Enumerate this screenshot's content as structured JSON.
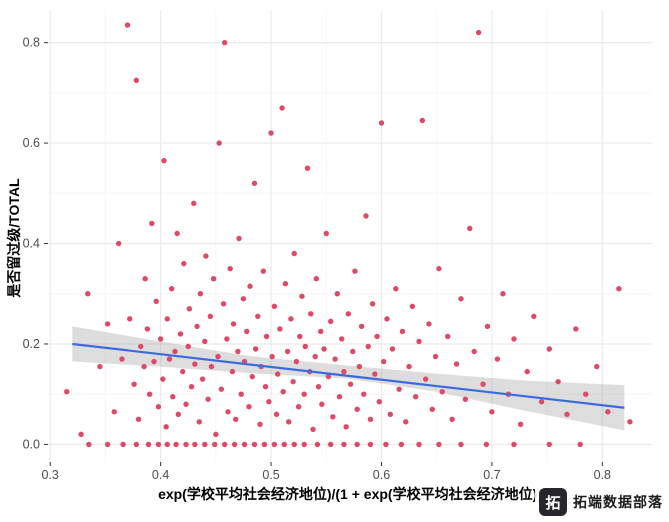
{
  "watermark": {
    "logo_glyph": "拓",
    "text": "拓端数据部落"
  },
  "chart_data": {
    "type": "scatter",
    "title": "",
    "xlabel": "exp(学校平均社会经济地位)/(1 + exp(学校平均社会经济地位))",
    "ylabel": "是否留过级/TOTAL",
    "xlim": [
      0.298,
      0.845
    ],
    "ylim": [
      -0.035,
      0.865
    ],
    "x_ticks": [
      0.3,
      0.4,
      0.5,
      0.6,
      0.7,
      0.8
    ],
    "y_ticks": [
      0.0,
      0.2,
      0.4,
      0.6,
      0.8
    ],
    "x_minor_ticks": [
      0.35,
      0.45,
      0.55,
      0.65,
      0.75
    ],
    "y_minor_ticks": [
      0.1,
      0.3,
      0.5,
      0.7
    ],
    "grid": true,
    "legend": "none",
    "colors": {
      "point": "#de4968",
      "smooth_line": "#3b6ae1",
      "band_fill": "#9e9e9e",
      "band_opacity": 0.35,
      "grid_major": "#ebebeb",
      "grid_minor": "#f6f6f6",
      "tick_text": "#4d4d4d",
      "tick_mark": "#333333"
    },
    "smooth": {
      "line": {
        "x": [
          0.32,
          0.82
        ],
        "y": [
          0.2,
          0.073
        ]
      },
      "band": {
        "x": [
          0.32,
          0.4,
          0.48,
          0.57,
          0.65,
          0.73,
          0.82
        ],
        "upper": [
          0.235,
          0.205,
          0.176,
          0.157,
          0.141,
          0.127,
          0.118
        ],
        "lower": [
          0.165,
          0.155,
          0.142,
          0.131,
          0.105,
          0.067,
          0.028
        ]
      }
    },
    "points": [
      [
        0.335,
        0
      ],
      [
        0.352,
        0
      ],
      [
        0.366,
        0
      ],
      [
        0.378,
        0
      ],
      [
        0.389,
        0
      ],
      [
        0.398,
        0
      ],
      [
        0.406,
        0
      ],
      [
        0.414,
        0
      ],
      [
        0.423,
        0
      ],
      [
        0.431,
        0
      ],
      [
        0.44,
        0
      ],
      [
        0.449,
        0
      ],
      [
        0.458,
        0
      ],
      [
        0.467,
        0
      ],
      [
        0.476,
        0
      ],
      [
        0.485,
        0
      ],
      [
        0.494,
        0
      ],
      [
        0.503,
        0
      ],
      [
        0.512,
        0
      ],
      [
        0.521,
        0
      ],
      [
        0.53,
        0
      ],
      [
        0.542,
        0
      ],
      [
        0.554,
        0
      ],
      [
        0.566,
        0
      ],
      [
        0.578,
        0
      ],
      [
        0.59,
        0
      ],
      [
        0.604,
        0
      ],
      [
        0.618,
        0
      ],
      [
        0.634,
        0
      ],
      [
        0.652,
        0
      ],
      [
        0.672,
        0
      ],
      [
        0.695,
        0
      ],
      [
        0.72,
        0
      ],
      [
        0.752,
        0
      ],
      [
        0.78,
        0
      ],
      [
        0.315,
        0.105
      ],
      [
        0.328,
        0.02
      ],
      [
        0.334,
        0.3
      ],
      [
        0.345,
        0.155
      ],
      [
        0.352,
        0.24
      ],
      [
        0.358,
        0.065
      ],
      [
        0.362,
        0.4
      ],
      [
        0.365,
        0.17
      ],
      [
        0.37,
        0.835
      ],
      [
        0.372,
        0.25
      ],
      [
        0.376,
        0.12
      ],
      [
        0.378,
        0.725
      ],
      [
        0.38,
        0.05
      ],
      [
        0.382,
        0.195
      ],
      [
        0.385,
        0.155
      ],
      [
        0.386,
        0.33
      ],
      [
        0.388,
        0.23
      ],
      [
        0.39,
        0.1
      ],
      [
        0.392,
        0.44
      ],
      [
        0.394,
        0.165
      ],
      [
        0.396,
        0.285
      ],
      [
        0.398,
        0.075
      ],
      [
        0.4,
        0.21
      ],
      [
        0.402,
        0.13
      ],
      [
        0.403,
        0.565
      ],
      [
        0.405,
        0.035
      ],
      [
        0.406,
        0.25
      ],
      [
        0.408,
        0.17
      ],
      [
        0.41,
        0.31
      ],
      [
        0.411,
        0.095
      ],
      [
        0.413,
        0.185
      ],
      [
        0.415,
        0.42
      ],
      [
        0.416,
        0.06
      ],
      [
        0.418,
        0.22
      ],
      [
        0.42,
        0.145
      ],
      [
        0.421,
        0.36
      ],
      [
        0.423,
        0.08
      ],
      [
        0.425,
        0.195
      ],
      [
        0.426,
        0.27
      ],
      [
        0.428,
        0.115
      ],
      [
        0.43,
        0.48
      ],
      [
        0.431,
        0.16
      ],
      [
        0.433,
        0.235
      ],
      [
        0.435,
        0.045
      ],
      [
        0.436,
        0.3
      ],
      [
        0.438,
        0.13
      ],
      [
        0.44,
        0.205
      ],
      [
        0.441,
        0.375
      ],
      [
        0.443,
        0.09
      ],
      [
        0.445,
        0.255
      ],
      [
        0.446,
        0.155
      ],
      [
        0.448,
        0.33
      ],
      [
        0.45,
        0.02
      ],
      [
        0.452,
        0.175
      ],
      [
        0.453,
        0.6
      ],
      [
        0.455,
        0.11
      ],
      [
        0.457,
        0.28
      ],
      [
        0.458,
        0.8
      ],
      [
        0.46,
        0.21
      ],
      [
        0.461,
        0.065
      ],
      [
        0.463,
        0.35
      ],
      [
        0.465,
        0.145
      ],
      [
        0.466,
        0.24
      ],
      [
        0.468,
        0.05
      ],
      [
        0.47,
        0.185
      ],
      [
        0.471,
        0.41
      ],
      [
        0.473,
        0.1
      ],
      [
        0.475,
        0.29
      ],
      [
        0.476,
        0.165
      ],
      [
        0.478,
        0.225
      ],
      [
        0.48,
        0.075
      ],
      [
        0.481,
        0.315
      ],
      [
        0.483,
        0.135
      ],
      [
        0.485,
        0.52
      ],
      [
        0.486,
        0.19
      ],
      [
        0.488,
        0.255
      ],
      [
        0.49,
        0.04
      ],
      [
        0.491,
        0.155
      ],
      [
        0.493,
        0.345
      ],
      [
        0.495,
        0.115
      ],
      [
        0.496,
        0.215
      ],
      [
        0.498,
        0.085
      ],
      [
        0.5,
        0.62
      ],
      [
        0.501,
        0.175
      ],
      [
        0.503,
        0.275
      ],
      [
        0.505,
        0.06
      ],
      [
        0.506,
        0.14
      ],
      [
        0.508,
        0.23
      ],
      [
        0.51,
        0.67
      ],
      [
        0.511,
        0.105
      ],
      [
        0.513,
        0.32
      ],
      [
        0.515,
        0.185
      ],
      [
        0.516,
        0.045
      ],
      [
        0.518,
        0.25
      ],
      [
        0.52,
        0.125
      ],
      [
        0.521,
        0.38
      ],
      [
        0.523,
        0.165
      ],
      [
        0.525,
        0.075
      ],
      [
        0.526,
        0.215
      ],
      [
        0.528,
        0.295
      ],
      [
        0.53,
        0.1
      ],
      [
        0.531,
        0.195
      ],
      [
        0.533,
        0.55
      ],
      [
        0.535,
        0.145
      ],
      [
        0.536,
        0.26
      ],
      [
        0.538,
        0.03
      ],
      [
        0.54,
        0.175
      ],
      [
        0.541,
        0.33
      ],
      [
        0.543,
        0.115
      ],
      [
        0.545,
        0.225
      ],
      [
        0.546,
        0.08
      ],
      [
        0.548,
        0.19
      ],
      [
        0.55,
        0.42
      ],
      [
        0.552,
        0.135
      ],
      [
        0.554,
        0.245
      ],
      [
        0.556,
        0.055
      ],
      [
        0.558,
        0.17
      ],
      [
        0.56,
        0.3
      ],
      [
        0.562,
        0.095
      ],
      [
        0.564,
        0.21
      ],
      [
        0.566,
        0.145
      ],
      [
        0.568,
        0.035
      ],
      [
        0.57,
        0.26
      ],
      [
        0.572,
        0.12
      ],
      [
        0.574,
        0.185
      ],
      [
        0.576,
        0.345
      ],
      [
        0.578,
        0.07
      ],
      [
        0.58,
        0.155
      ],
      [
        0.582,
        0.235
      ],
      [
        0.584,
        0.1
      ],
      [
        0.586,
        0.455
      ],
      [
        0.588,
        0.195
      ],
      [
        0.59,
        0.05
      ],
      [
        0.592,
        0.28
      ],
      [
        0.594,
        0.14
      ],
      [
        0.596,
        0.215
      ],
      [
        0.598,
        0.085
      ],
      [
        0.6,
        0.64
      ],
      [
        0.602,
        0.165
      ],
      [
        0.605,
        0.25
      ],
      [
        0.608,
        0.06
      ],
      [
        0.61,
        0.19
      ],
      [
        0.613,
        0.31
      ],
      [
        0.616,
        0.11
      ],
      [
        0.619,
        0.225
      ],
      [
        0.622,
        0.045
      ],
      [
        0.625,
        0.155
      ],
      [
        0.628,
        0.275
      ],
      [
        0.631,
        0.095
      ],
      [
        0.634,
        0.205
      ],
      [
        0.637,
        0.645
      ],
      [
        0.64,
        0.13
      ],
      [
        0.643,
        0.24
      ],
      [
        0.646,
        0.07
      ],
      [
        0.649,
        0.175
      ],
      [
        0.652,
        0.35
      ],
      [
        0.655,
        0.105
      ],
      [
        0.66,
        0.215
      ],
      [
        0.664,
        0.05
      ],
      [
        0.668,
        0.16
      ],
      [
        0.672,
        0.29
      ],
      [
        0.676,
        0.09
      ],
      [
        0.68,
        0.43
      ],
      [
        0.684,
        0.185
      ],
      [
        0.688,
        0.82
      ],
      [
        0.692,
        0.12
      ],
      [
        0.696,
        0.235
      ],
      [
        0.7,
        0.065
      ],
      [
        0.705,
        0.17
      ],
      [
        0.71,
        0.3
      ],
      [
        0.715,
        0.1
      ],
      [
        0.72,
        0.21
      ],
      [
        0.726,
        0.04
      ],
      [
        0.732,
        0.145
      ],
      [
        0.738,
        0.255
      ],
      [
        0.745,
        0.085
      ],
      [
        0.752,
        0.19
      ],
      [
        0.76,
        0.125
      ],
      [
        0.768,
        0.06
      ],
      [
        0.776,
        0.23
      ],
      [
        0.785,
        0.1
      ],
      [
        0.795,
        0.155
      ],
      [
        0.805,
        0.065
      ],
      [
        0.815,
        0.31
      ],
      [
        0.825,
        0.045
      ]
    ]
  }
}
